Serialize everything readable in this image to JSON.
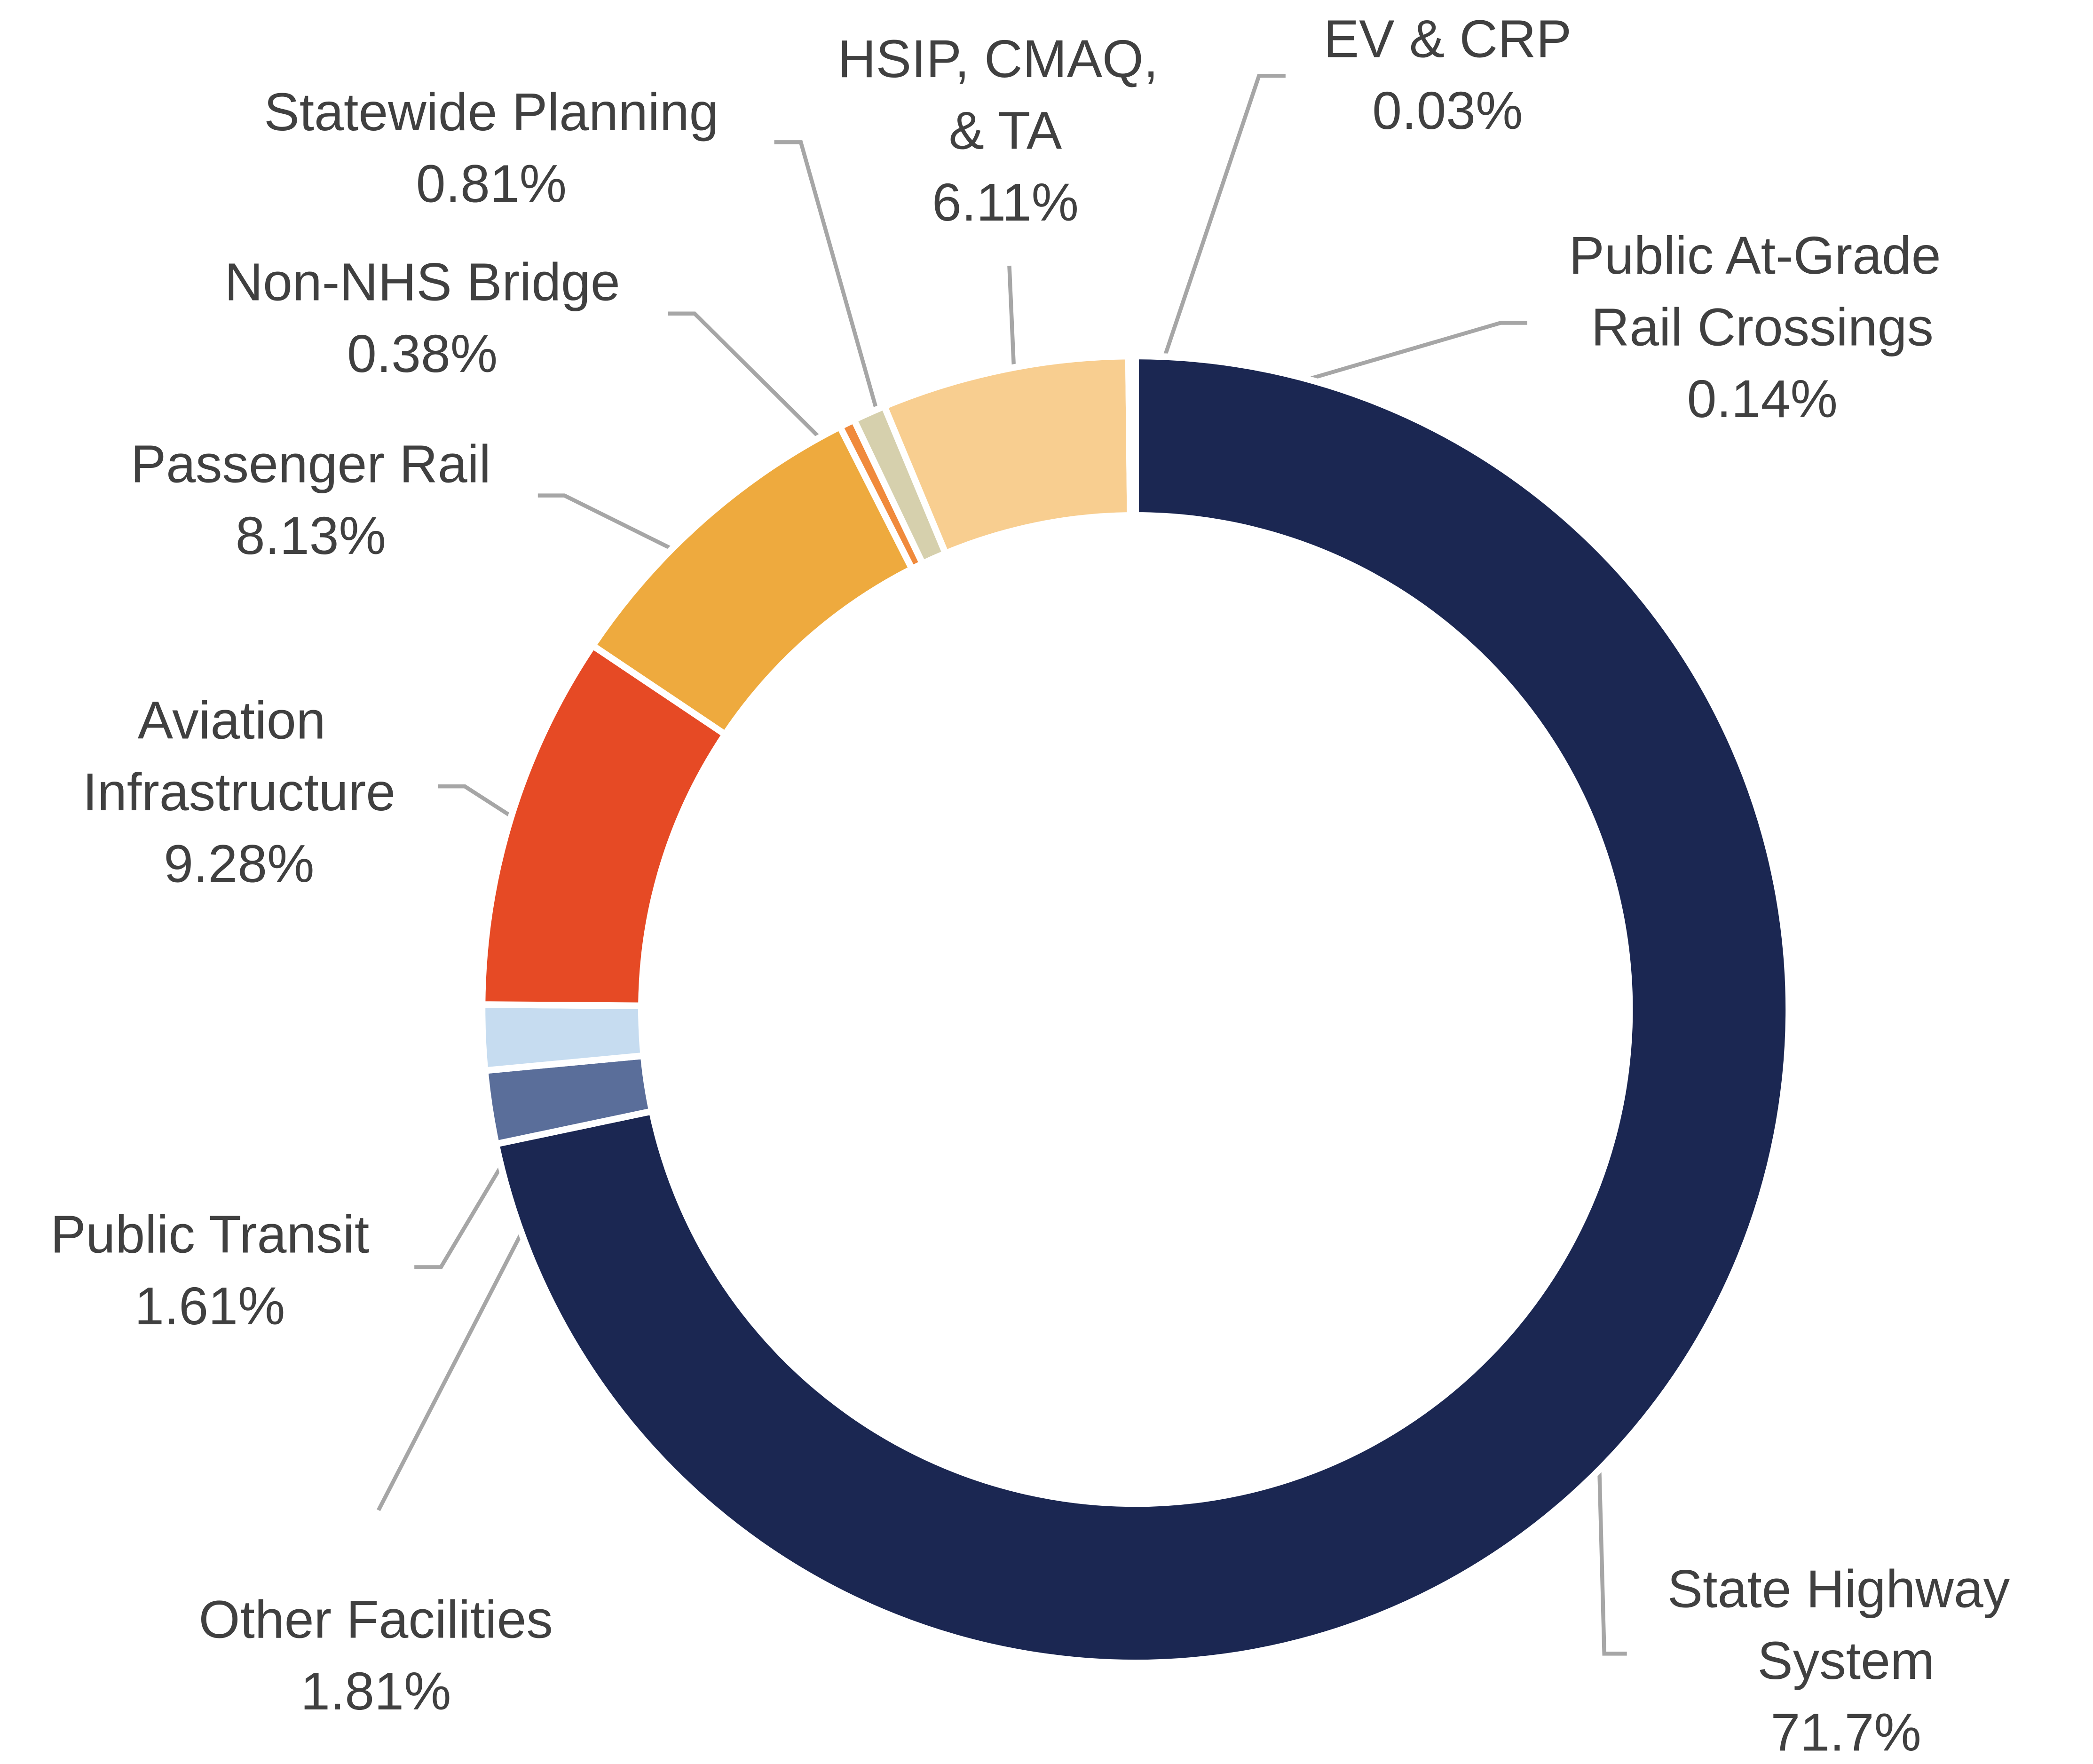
{
  "chart_data": {
    "type": "donut",
    "categories": [
      "State Highway System",
      "Other Facilities",
      "Public Transit",
      "Aviation Infrastructure",
      "Passenger Rail",
      "Non-NHS Bridge",
      "Statewide Planning",
      "HSIP, CMAQ, & TA",
      "EV & CRP",
      "Public At-Grade Rail Crossings"
    ],
    "values": [
      71.7,
      1.81,
      1.61,
      9.28,
      8.13,
      0.38,
      0.81,
      6.11,
      0.03,
      0.14
    ],
    "value_labels": [
      "71.7%",
      "1.81%",
      "1.61%",
      "9.28%",
      "8.13%",
      "0.38%",
      "0.81%",
      "6.11%",
      "0.03%",
      "0.14%"
    ],
    "colors": [
      "#1b2752",
      "#5a6e9a",
      "#c6dcf0",
      "#e64a25",
      "#eeaa3e",
      "#f08a3c",
      "#d6d0ad",
      "#f8ce90",
      "#f8ce90",
      "#1b2752"
    ]
  }
}
